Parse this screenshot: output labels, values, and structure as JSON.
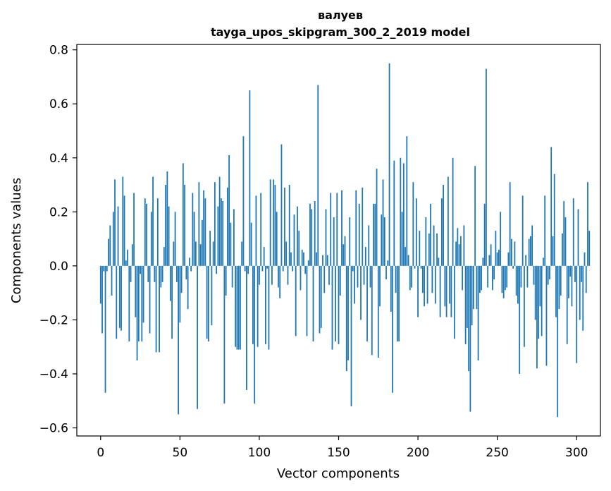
{
  "chart_data": {
    "type": "bar",
    "title": "валуев",
    "subtitle": "tayga_upos_skipgram_300_2_2019 model",
    "xlabel": "Vector components",
    "ylabel": "Components values",
    "xlim": [
      -15,
      315
    ],
    "ylim": [
      -0.63,
      0.82
    ],
    "xticks": [
      0,
      50,
      100,
      150,
      200,
      250,
      300
    ],
    "xtick_labels": [
      "0",
      "50",
      "100",
      "150",
      "200",
      "250",
      "300"
    ],
    "yticks": [
      -0.6,
      -0.4,
      -0.2,
      0.0,
      0.2,
      0.4,
      0.6,
      0.8
    ],
    "ytick_labels": [
      "−0.6",
      "−0.4",
      "−0.2",
      "0.0",
      "0.2",
      "0.4",
      "0.6",
      "0.8"
    ],
    "grid": false,
    "bar_color": "#1f77b4",
    "categories_start": 0,
    "values": [
      -0.14,
      -0.25,
      -0.02,
      -0.47,
      -0.02,
      0.1,
      0.15,
      -0.11,
      0.2,
      0.32,
      -0.27,
      0.22,
      -0.23,
      -0.24,
      0.33,
      0.26,
      0.02,
      0.06,
      -0.28,
      -0.06,
      0.08,
      0.27,
      -0.19,
      -0.35,
      -0.28,
      -0.03,
      -0.28,
      -0.21,
      0.25,
      0.23,
      -0.06,
      -0.25,
      0.2,
      0.33,
      -0.06,
      -0.32,
      0.25,
      -0.32,
      -0.08,
      -0.06,
      0.07,
      0.3,
      0.35,
      0.22,
      -0.13,
      -0.27,
      0.09,
      0.2,
      -0.06,
      -0.55,
      -0.21,
      -0.1,
      0.38,
      0.3,
      -0.05,
      -0.16,
      0.03,
      -0.02,
      0.27,
      0.2,
      0.09,
      -0.53,
      0.31,
      0.08,
      0.17,
      0.28,
      0.25,
      -0.27,
      -0.28,
      0.13,
      -0.22,
      0.09,
      0.31,
      -0.03,
      0.22,
      0.33,
      0.25,
      0.24,
      -0.51,
      -0.11,
      0.29,
      0.41,
      0.16,
      -0.08,
      0.21,
      -0.3,
      -0.31,
      -0.31,
      -0.31,
      0.09,
      0.48,
      -0.02,
      -0.46,
      -0.03,
      0.65,
      0.16,
      -0.29,
      -0.51,
      0.26,
      -0.3,
      -0.07,
      0.27,
      -0.02,
      0.07,
      -0.29,
      -0.01,
      -0.31,
      0.32,
      -0.07,
      0.32,
      0.3,
      0.2,
      -0.08,
      -0.12,
      0.45,
      -0.02,
      0.29,
      0.09,
      -0.07,
      0.3,
      0.05,
      -0.02,
      0.19,
      -0.26,
      0.22,
      0.13,
      -0.09,
      0.06,
      0.05,
      -0.03,
      -0.26,
      0.02,
      0.23,
      0.21,
      -0.28,
      0.24,
      0.05,
      0.67,
      -0.25,
      -0.23,
      0.04,
      -0.1,
      0.21,
      0.04,
      -0.07,
      0.27,
      -0.31,
      0.18,
      -0.28,
      0.27,
      -0.29,
      -0.11,
      0.28,
      0.08,
      0.11,
      -0.39,
      -0.35,
      0.18,
      -0.52,
      -0.02,
      -0.14,
      0.28,
      -0.08,
      0.23,
      -0.2,
      0.29,
      -0.07,
      0.07,
      -0.28,
      0.15,
      -0.08,
      -0.33,
      0.23,
      0.23,
      0.36,
      -0.34,
      -0.15,
      0.19,
      0.32,
      0.18,
      -0.05,
      0.02,
      0.75,
      -0.17,
      -0.47,
      0.39,
      -0.1,
      -0.28,
      -0.28,
      0.4,
      0.2,
      0.38,
      0.07,
      0.48,
      0.04,
      -0.09,
      -0.08,
      0.31,
      -0.01,
      0.25,
      -0.19,
      0.13,
      -0.01,
      -0.1,
      -0.15,
      0.18,
      -0.14,
      0.12,
      0.23,
      -0.1,
      0.15,
      -0.14,
      0.12,
      0.03,
      -0.19,
      0.25,
      0.3,
      -0.15,
      -0.19,
      0.33,
      -0.14,
      -0.19,
      0.4,
      -0.27,
      0.09,
      0.14,
      0.08,
      0.11,
      -0.09,
      0.15,
      -0.29,
      -0.23,
      -0.39,
      -0.54,
      -0.22,
      -0.16,
      0.37,
      -0.16,
      -0.35,
      -0.1,
      -0.09,
      0.03,
      0.23,
      0.73,
      -0.08,
      0.04,
      0.08,
      -0.09,
      -0.05,
      0.13,
      0.05,
      0.06,
      0.2,
      -0.1,
      -0.12,
      -0.09,
      -0.08,
      0.05,
      0.31,
      0.1,
      -0.01,
      0.09,
      -0.11,
      -0.14,
      -0.4,
      -0.08,
      0.26,
      -0.3,
      0.04,
      -0.08,
      0.1,
      0.11,
      0.15,
      -0.07,
      -0.2,
      -0.38,
      -0.27,
      -0.15,
      -0.26,
      0.03,
      0.26,
      -0.37,
      -0.07,
      -0.05,
      0.44,
      0.11,
      0.34,
      -0.19,
      -0.56,
      -0.16,
      -0.11,
      0.12,
      0.24,
      0.18,
      -0.29,
      -0.12,
      -0.04,
      -0.15,
      0.25,
      -0.06,
      -0.36,
      0.21,
      -0.2,
      -0.06,
      -0.24,
      0.05,
      -0.1,
      0.31,
      0.13
    ]
  }
}
